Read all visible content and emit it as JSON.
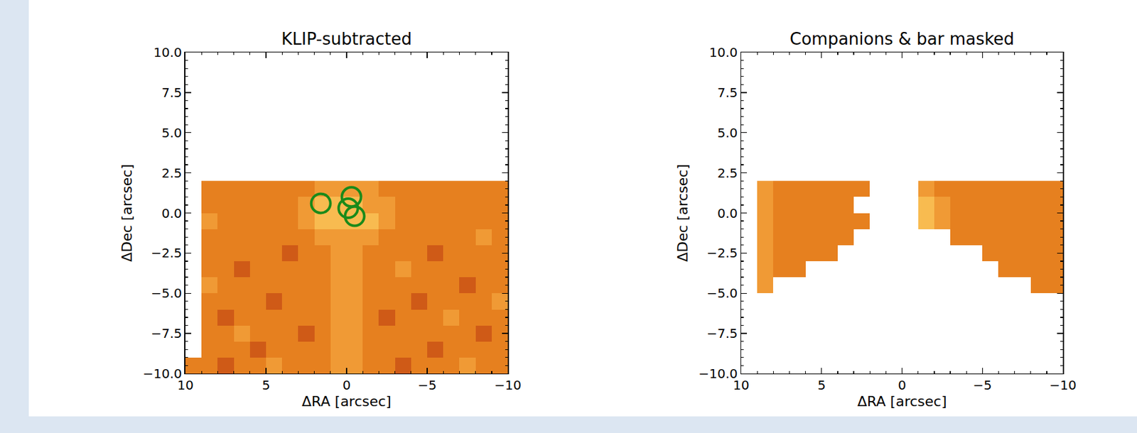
{
  "chart_data": [
    {
      "type": "heatmap",
      "title": "KLIP-subtracted",
      "x_label": "ΔRA [arcsec]",
      "y_label": "ΔDec [arcsec]",
      "xlim": [
        10,
        -10
      ],
      "ylim": [
        -10,
        10
      ],
      "xticks": [
        10,
        5,
        0,
        {
          "value": -5,
          "label": "−5"
        },
        {
          "value": -10,
          "label": "−10"
        }
      ],
      "yticks": [
        {
          "value": -10,
          "label": "−10.0"
        },
        {
          "value": -7.5,
          "label": "−7.5"
        },
        {
          "value": -5,
          "label": "−5.0"
        },
        {
          "value": -2.5,
          "label": "−2.5"
        },
        {
          "value": 0,
          "label": "0.0"
        },
        {
          "value": 2.5,
          "label": "2.5"
        },
        {
          "value": 5,
          "label": "5.0"
        },
        {
          "value": 7.5,
          "label": "7.5"
        },
        {
          "value": 10,
          "label": "10.0"
        }
      ],
      "zlim": [
        0,
        10
      ],
      "x": [
        9.5,
        8.5,
        7.5,
        6.5,
        5.5,
        4.5,
        3.5,
        2.5,
        1.5,
        0.5,
        -0.5,
        -1.5,
        -2.5,
        -3.5,
        -4.5,
        -5.5,
        -6.5,
        -7.5,
        -8.5,
        -9.5
      ],
      "y": [
        -9.5,
        -8.5,
        -7.5,
        -6.5,
        -5.5,
        -4.5,
        -3.5,
        -2.5,
        -1.5,
        -0.5,
        0.5,
        1.5
      ],
      "cells": [
        [
          5,
          5,
          4,
          5,
          5,
          6,
          5,
          5,
          5,
          6,
          6,
          5,
          5,
          4,
          5,
          5,
          5,
          6,
          5,
          5
        ],
        [
          null,
          5,
          5,
          5,
          4,
          5,
          5,
          5,
          5,
          6,
          6,
          5,
          5,
          5,
          5,
          4,
          5,
          5,
          5,
          5
        ],
        [
          null,
          5,
          5,
          6,
          5,
          5,
          5,
          4,
          5,
          6,
          6,
          5,
          5,
          5,
          5,
          5,
          5,
          5,
          4,
          5
        ],
        [
          null,
          5,
          4,
          5,
          5,
          5,
          5,
          5,
          5,
          6,
          6,
          5,
          4,
          5,
          5,
          5,
          6,
          5,
          5,
          5
        ],
        [
          null,
          5,
          5,
          5,
          5,
          4,
          5,
          5,
          5,
          6,
          6,
          5,
          5,
          5,
          4,
          5,
          5,
          5,
          5,
          6
        ],
        [
          null,
          6,
          5,
          5,
          5,
          5,
          5,
          5,
          5,
          6,
          6,
          5,
          5,
          5,
          5,
          5,
          5,
          4,
          5,
          5
        ],
        [
          null,
          5,
          5,
          4,
          5,
          5,
          5,
          5,
          5,
          6,
          6,
          5,
          5,
          6,
          5,
          5,
          5,
          5,
          5,
          5
        ],
        [
          null,
          5,
          5,
          5,
          5,
          5,
          4,
          5,
          5,
          6,
          6,
          5,
          5,
          5,
          5,
          4,
          5,
          5,
          5,
          5
        ],
        [
          null,
          5,
          5,
          5,
          5,
          5,
          5,
          5,
          6,
          6,
          6,
          6,
          5,
          5,
          5,
          5,
          5,
          5,
          6,
          5
        ],
        [
          null,
          6,
          5,
          5,
          5,
          5,
          5,
          6,
          7,
          7,
          7,
          7,
          6,
          5,
          5,
          5,
          5,
          5,
          5,
          5
        ],
        [
          null,
          5,
          5,
          5,
          5,
          5,
          5,
          6,
          7,
          7,
          7,
          6,
          6,
          5,
          5,
          5,
          5,
          5,
          5,
          5
        ],
        [
          null,
          5,
          5,
          5,
          5,
          5,
          5,
          5,
          6,
          6,
          6,
          6,
          5,
          5,
          5,
          5,
          5,
          5,
          5,
          5
        ]
      ],
      "companions": {
        "x": [
          1.6,
          -0.3,
          -0.1,
          -0.5
        ],
        "y": [
          0.6,
          1.0,
          0.3,
          -0.2
        ],
        "color": "#1a8a1a",
        "marker": "open circle"
      }
    },
    {
      "type": "heatmap",
      "title": "Companions & bar masked",
      "x_label": "ΔRA [arcsec]",
      "y_label": "ΔDec [arcsec]",
      "xlim": [
        10,
        -10
      ],
      "ylim": [
        -10,
        10
      ],
      "xticks": [
        10,
        5,
        0,
        {
          "value": -5,
          "label": "−5"
        },
        {
          "value": -10,
          "label": "−10"
        }
      ],
      "yticks": [
        {
          "value": -10,
          "label": "−10.0"
        },
        {
          "value": -7.5,
          "label": "−7.5"
        },
        {
          "value": -5,
          "label": "−5.0"
        },
        {
          "value": -2.5,
          "label": "−2.5"
        },
        {
          "value": 0,
          "label": "0.0"
        },
        {
          "value": 2.5,
          "label": "2.5"
        },
        {
          "value": 5,
          "label": "5.0"
        },
        {
          "value": 7.5,
          "label": "7.5"
        },
        {
          "value": 10,
          "label": "10.0"
        }
      ],
      "zlim": [
        0,
        10
      ],
      "x": [
        9.5,
        8.5,
        7.5,
        6.5,
        5.5,
        4.5,
        3.5,
        2.5,
        1.5,
        0.5,
        -0.5,
        -1.5,
        -2.5,
        -3.5,
        -4.5,
        -5.5,
        -6.5,
        -7.5,
        -8.5,
        -9.5
      ],
      "y": [
        -9.5,
        -8.5,
        -7.5,
        -6.5,
        -5.5,
        -4.5,
        -3.5,
        -2.5,
        -1.5,
        -0.5,
        0.5,
        1.5
      ],
      "cells": [
        [
          null,
          null,
          null,
          null,
          null,
          null,
          null,
          null,
          null,
          null,
          null,
          null,
          null,
          null,
          null,
          null,
          null,
          null,
          null,
          null
        ],
        [
          null,
          null,
          null,
          null,
          null,
          null,
          null,
          null,
          null,
          null,
          null,
          null,
          null,
          null,
          null,
          null,
          null,
          null,
          null,
          null
        ],
        [
          null,
          null,
          null,
          null,
          null,
          null,
          null,
          null,
          null,
          null,
          null,
          null,
          null,
          null,
          null,
          null,
          null,
          null,
          null,
          null
        ],
        [
          null,
          null,
          null,
          null,
          null,
          null,
          null,
          null,
          null,
          null,
          null,
          null,
          null,
          null,
          null,
          null,
          null,
          null,
          null,
          null
        ],
        [
          null,
          null,
          null,
          null,
          null,
          null,
          null,
          null,
          null,
          null,
          null,
          null,
          null,
          null,
          null,
          null,
          null,
          null,
          null,
          null
        ],
        [
          null,
          6,
          null,
          null,
          null,
          null,
          null,
          null,
          null,
          null,
          null,
          null,
          null,
          null,
          null,
          null,
          null,
          null,
          5,
          5
        ],
        [
          null,
          6,
          5,
          5,
          null,
          null,
          null,
          null,
          null,
          null,
          null,
          null,
          null,
          null,
          null,
          null,
          5,
          5,
          5,
          5
        ],
        [
          null,
          6,
          5,
          5,
          5,
          5,
          null,
          null,
          null,
          null,
          null,
          null,
          null,
          null,
          null,
          5,
          5,
          5,
          5,
          5
        ],
        [
          null,
          6,
          5,
          5,
          5,
          5,
          5,
          null,
          null,
          null,
          null,
          null,
          null,
          5,
          5,
          5,
          5,
          5,
          5,
          5
        ],
        [
          null,
          6,
          5,
          5,
          5,
          5,
          5,
          5,
          null,
          null,
          null,
          7,
          6,
          5,
          5,
          5,
          5,
          5,
          5,
          5
        ],
        [
          null,
          6,
          5,
          5,
          5,
          5,
          5,
          null,
          null,
          null,
          null,
          7,
          6,
          5,
          5,
          5,
          5,
          5,
          5,
          5
        ],
        [
          null,
          6,
          5,
          5,
          5,
          5,
          5,
          5,
          null,
          null,
          null,
          6,
          5,
          5,
          5,
          5,
          5,
          5,
          5,
          5
        ]
      ]
    }
  ]
}
